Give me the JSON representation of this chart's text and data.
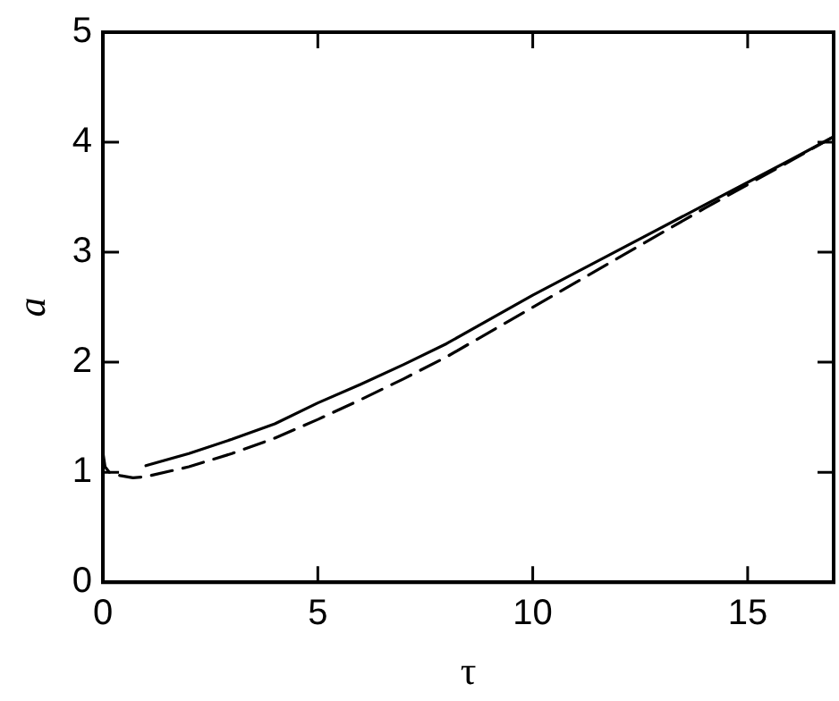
{
  "chart_data": {
    "type": "line",
    "xlabel": "τ",
    "ylabel": "a",
    "xlim": [
      0,
      17
    ],
    "ylim": [
      0,
      5
    ],
    "xticks": [
      0,
      5,
      10,
      15
    ],
    "yticks": [
      0,
      1,
      2,
      3,
      4,
      5
    ],
    "grid": false,
    "legend": false,
    "marker": "none",
    "series": [
      {
        "color": "#000000",
        "line_style": "solid",
        "x": [
          1,
          2,
          3,
          4,
          5,
          6,
          7,
          8,
          10,
          12,
          14,
          16,
          17
        ],
        "values": [
          1.06,
          1.17,
          1.3,
          1.44,
          1.63,
          1.8,
          1.98,
          2.17,
          2.61,
          3.02,
          3.43,
          3.84,
          4.05
        ]
      },
      {
        "color": "#000000",
        "line_style": "dashed",
        "x": [
          0,
          0.05,
          0.15,
          0.4,
          0.7,
          1,
          2,
          3,
          4,
          5,
          6,
          7,
          8,
          10,
          12,
          14,
          16,
          17
        ],
        "values": [
          1.18,
          1.05,
          1.0,
          0.97,
          0.95,
          0.96,
          1.05,
          1.17,
          1.31,
          1.48,
          1.66,
          1.85,
          2.05,
          2.5,
          2.95,
          3.4,
          3.83,
          4.05
        ]
      }
    ]
  }
}
